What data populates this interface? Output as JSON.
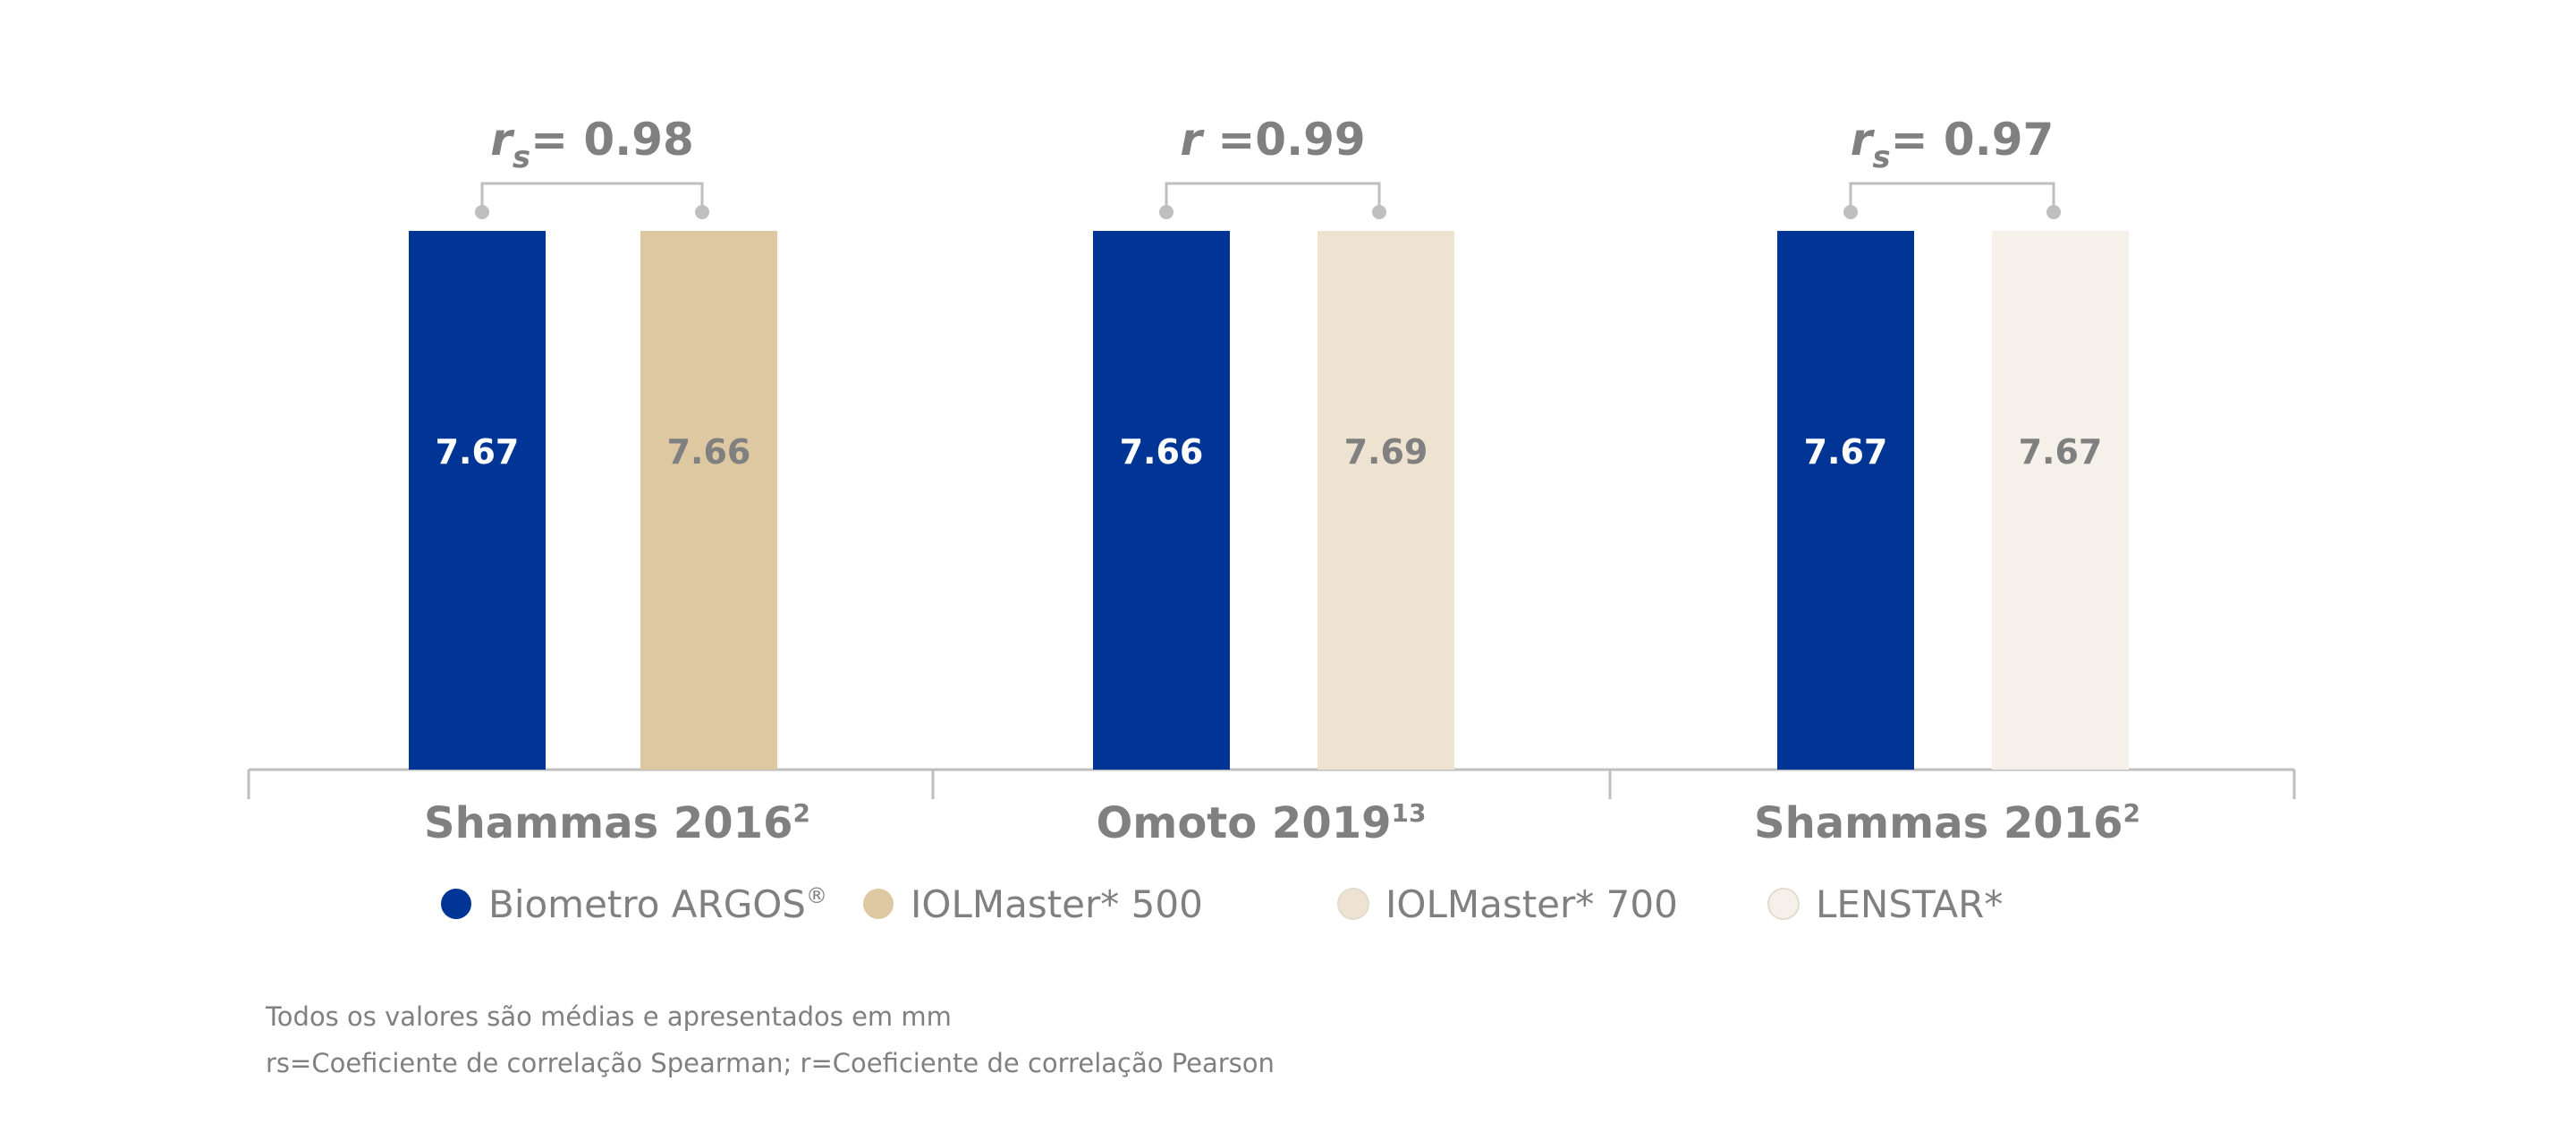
{
  "chart_data": {
    "type": "bar",
    "colors": {
      "Biometro ARGOS®": "#003595",
      "IOLMaster* 500": "#ddc8a2",
      "IOLMaster* 700": "#ede3d0",
      "LENSTAR*": "#f5f1ea",
      "text_gray": "#808080",
      "axis_gray": "#bfbfbf"
    },
    "legend": {
      "position": "bottom",
      "entries": [
        "Biometro ARGOS",
        "IOLMaster* 500",
        "IOLMaster* 700",
        "LENSTAR*"
      ],
      "superscripts": [
        "®",
        "",
        "",
        ""
      ]
    },
    "groups": [
      {
        "label": "Shammas 2016",
        "label_sup": "2",
        "correlation": {
          "symbol": "r",
          "subscript": "s",
          "text": "= 0.98"
        },
        "bars": [
          {
            "series": "Biometro ARGOS®",
            "value": 7.67,
            "label": "7.67"
          },
          {
            "series": "IOLMaster* 500",
            "value": 7.66,
            "label": "7.66"
          }
        ]
      },
      {
        "label": "Omoto 2019",
        "label_sup": "13",
        "correlation": {
          "symbol": "r",
          "subscript": "",
          "text": " =0.99"
        },
        "bars": [
          {
            "series": "Biometro ARGOS®",
            "value": 7.66,
            "label": "7.66"
          },
          {
            "series": "IOLMaster* 700",
            "value": 7.69,
            "label": "7.69"
          }
        ]
      },
      {
        "label": "Shammas 2016",
        "label_sup": "2",
        "correlation": {
          "symbol": "r",
          "subscript": "s",
          "text": "= 0.97"
        },
        "bars": [
          {
            "series": "Biometro ARGOS®",
            "value": 7.67,
            "label": "7.67"
          },
          {
            "series": "LENSTAR*",
            "value": 7.67,
            "label": "7.67"
          }
        ]
      }
    ],
    "grid": false
  },
  "notes": [
    "Todos os valores são médias e apresentados em mm",
    "rs=Coeficiente de correlação Spearman; r=Coeficiente de correlação Pearson"
  ]
}
